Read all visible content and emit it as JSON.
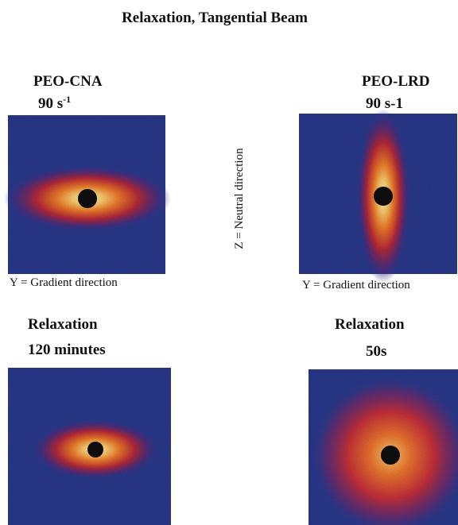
{
  "title": "Relaxation, Tangential Beam",
  "middle_axis_label": "Z = Neutral direction",
  "panels": [
    {
      "label": "PEO-CNA",
      "rate": {
        "text": "90 s",
        "sup": "-1"
      },
      "axis_label": "Y = Gradient direction"
    },
    {
      "label": "PEO-LRD",
      "rate": "90 s-1",
      "axis_label": "Y = Gradient direction"
    },
    {
      "label": "Relaxation",
      "time": "120 minutes"
    },
    {
      "label": "Relaxation",
      "time": "50s"
    }
  ]
}
